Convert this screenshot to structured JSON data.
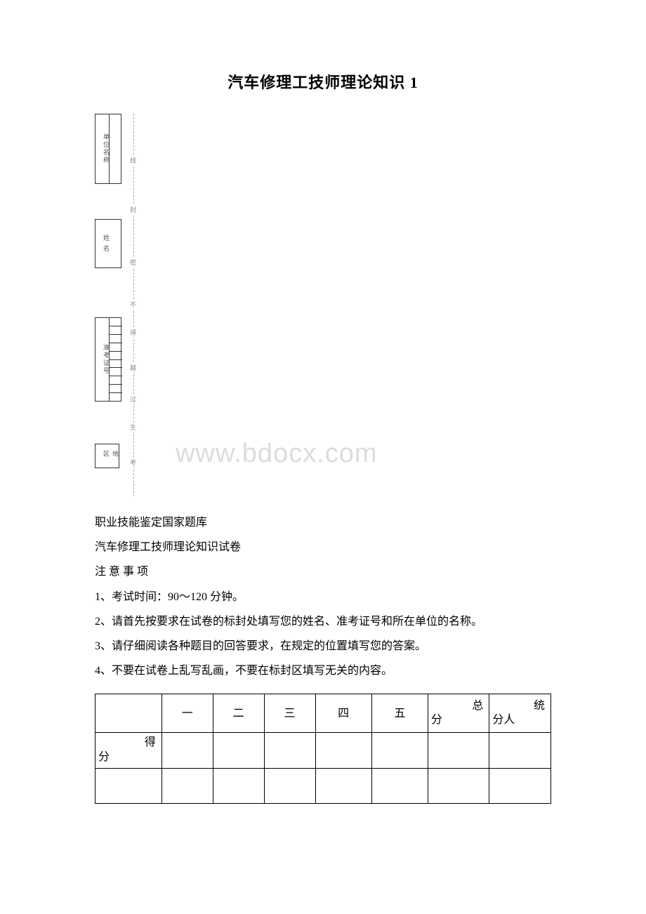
{
  "title": "汽车修理工技师理论知识 1",
  "watermark": "www.bdocx.com",
  "form_labels": {
    "box1": "单位名称",
    "box2": "姓 名",
    "box3": "准考证号",
    "box4": "地区"
  },
  "dash_labels": [
    "线",
    "封",
    "密",
    "不",
    "得",
    "越",
    "过",
    "生",
    "考"
  ],
  "intro": {
    "line1": "职业技能鉴定国家题库",
    "line2": "汽车修理工技师理论知识试卷",
    "notice_title": "注 意 事 项",
    "items": [
      "1、考试时间：90～120 分钟。",
      "2、请首先按要求在试卷的标封处填写您的姓名、准考证号和所在单位的名称。",
      "3、请仔细阅读各种题目的回答要求，在规定的位置填写您的答案。",
      "4、不要在试卷上乱写乱画，不要在标封区填写无关的内容。"
    ]
  },
  "table": {
    "headers": [
      "",
      "一",
      "二",
      "三",
      "四",
      "五"
    ],
    "total_label_top": "总",
    "total_label_bottom": "分",
    "scorer_label_top": "统",
    "scorer_label_bottom": "分人",
    "row2_label_top": "得",
    "row2_label_bottom": "分",
    "col_widths": [
      "13%",
      "10%",
      "10%",
      "10%",
      "11%",
      "11%",
      "12%",
      "12%"
    ]
  }
}
